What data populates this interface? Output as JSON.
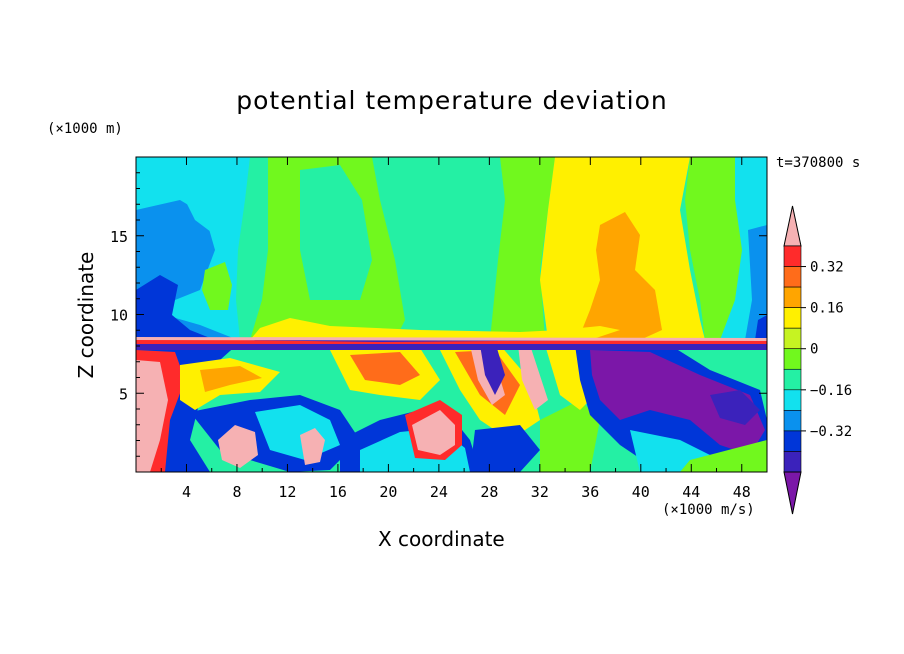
{
  "chart_data": {
    "type": "heatmap",
    "title": "potential temperature deviation",
    "xlabel": "X coordinate",
    "ylabel": "Z coordinate",
    "x_unit": "(×1000 m/s)",
    "z_unit": "(×1000 m)",
    "time_label": "t=370800 s",
    "xlim": [
      0,
      50
    ],
    "ylim": [
      0,
      20
    ],
    "x_ticks": [
      4,
      8,
      12,
      16,
      20,
      24,
      28,
      32,
      36,
      40,
      44,
      48
    ],
    "y_ticks": [
      5,
      10,
      15
    ],
    "colorbar": {
      "levels": [
        -0.48,
        -0.4,
        -0.32,
        -0.24,
        -0.16,
        -0.08,
        0,
        0.08,
        0.16,
        0.24,
        0.32,
        0.4
      ],
      "tick_labels": [
        "0.32",
        "0.16",
        "0",
        "−0.16",
        "−0.32"
      ],
      "colors": [
        "#7b17a8",
        "#3b22bb",
        "#0036d8",
        "#0a91ee",
        "#12e1ee",
        "#24f0a4",
        "#71f81e",
        "#c6f322",
        "#fff000",
        "#ffa500",
        "#ff6c1a",
        "#ff2b2b",
        "#f6b1b3"
      ]
    },
    "field_description_free": true
  }
}
